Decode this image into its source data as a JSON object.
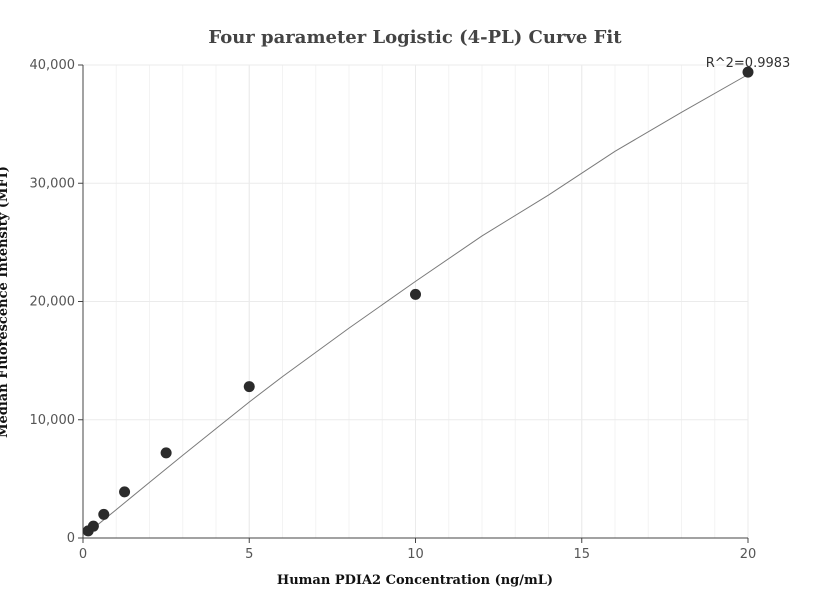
{
  "chart_data": {
    "type": "scatter",
    "title": "Four parameter Logistic (4-PL) Curve Fit",
    "xlabel": "Human PDIA2 Concentration (ng/mL)",
    "ylabel": "Median Fluorescence Intensity (MFI)",
    "xlim": [
      0,
      20
    ],
    "ylim": [
      0,
      40000
    ],
    "x_ticks": [
      0,
      5,
      10,
      15,
      20
    ],
    "x_tick_labels": [
      "0",
      "5",
      "10",
      "15",
      "20"
    ],
    "y_ticks": [
      0,
      10000,
      20000,
      30000,
      40000
    ],
    "y_tick_labels": [
      "0",
      "10,000",
      "20,000",
      "30,000",
      "40,000"
    ],
    "annotation": "R^2=0.9983",
    "grid": true,
    "points": {
      "x": [
        0.156,
        0.3125,
        0.625,
        1.25,
        2.5,
        5,
        10,
        20
      ],
      "y": [
        600,
        1000,
        2000,
        3900,
        7200,
        12800,
        20600,
        39400
      ]
    },
    "fit_curve": {
      "x": [
        0,
        0.5,
        1,
        2,
        3,
        4,
        5,
        6,
        8,
        10,
        12,
        14,
        16,
        18,
        20
      ],
      "y": [
        200,
        1250,
        2400,
        4700,
        7000,
        9250,
        11500,
        13650,
        17750,
        21700,
        25550,
        29000,
        32700,
        36000,
        39200
      ]
    },
    "colors": {
      "points": "#2b2b2b",
      "curve": "#7a7a7a",
      "grid": "#ebebeb",
      "axis": "#444444"
    }
  }
}
